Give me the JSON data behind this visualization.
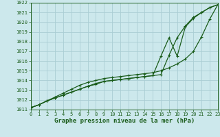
{
  "title": "Graphe pression niveau de la mer (hPa)",
  "background_color": "#cce8ec",
  "grid_color": "#aacdd4",
  "line_color": "#1a5c1a",
  "xlim": [
    0,
    23
  ],
  "ylim": [
    1011,
    1022
  ],
  "xticks": [
    0,
    1,
    2,
    3,
    4,
    5,
    6,
    7,
    8,
    9,
    10,
    11,
    12,
    13,
    14,
    15,
    16,
    17,
    18,
    19,
    20,
    21,
    22,
    23
  ],
  "yticks": [
    1011,
    1012,
    1013,
    1014,
    1015,
    1016,
    1017,
    1018,
    1019,
    1020,
    1021,
    1022
  ],
  "series1_x": [
    0,
    1,
    2,
    3,
    4,
    5,
    6,
    7,
    8,
    9,
    10,
    11,
    12,
    13,
    14,
    15,
    16,
    17,
    18,
    19,
    20,
    21,
    22,
    23
  ],
  "series1_y": [
    1011.2,
    1011.5,
    1011.9,
    1012.2,
    1012.5,
    1012.8,
    1013.1,
    1013.4,
    1013.7,
    1013.9,
    1014.0,
    1014.1,
    1014.2,
    1014.3,
    1014.4,
    1014.5,
    1014.6,
    1016.6,
    1018.4,
    1019.6,
    1020.5,
    1021.0,
    1021.5,
    1021.8
  ],
  "series2_x": [
    0,
    1,
    2,
    3,
    4,
    5,
    6,
    7,
    8,
    9,
    10,
    11,
    12,
    13,
    14,
    15,
    16,
    17,
    18,
    19,
    20,
    21,
    22,
    23
  ],
  "series2_y": [
    1011.2,
    1011.5,
    1011.9,
    1012.2,
    1012.5,
    1012.8,
    1013.1,
    1013.4,
    1013.6,
    1013.9,
    1014.0,
    1014.1,
    1014.2,
    1014.3,
    1014.4,
    1014.5,
    1016.5,
    1018.4,
    1016.5,
    1019.5,
    1020.4,
    1021.0,
    1021.5,
    1021.8
  ],
  "series3_x": [
    0,
    1,
    2,
    3,
    4,
    5,
    6,
    7,
    8,
    9,
    10,
    11,
    12,
    13,
    14,
    15,
    16,
    17,
    18,
    19,
    20,
    21,
    22,
    23
  ],
  "series3_y": [
    1011.2,
    1011.5,
    1011.9,
    1012.3,
    1012.7,
    1013.1,
    1013.5,
    1013.8,
    1014.0,
    1014.2,
    1014.3,
    1014.4,
    1014.5,
    1014.6,
    1014.7,
    1014.8,
    1015.0,
    1015.3,
    1015.7,
    1016.2,
    1017.0,
    1018.5,
    1020.3,
    1021.8
  ],
  "marker_style": "+",
  "marker_size": 3,
  "line_width": 0.9,
  "title_fontsize": 6.5,
  "tick_fontsize": 5.0
}
